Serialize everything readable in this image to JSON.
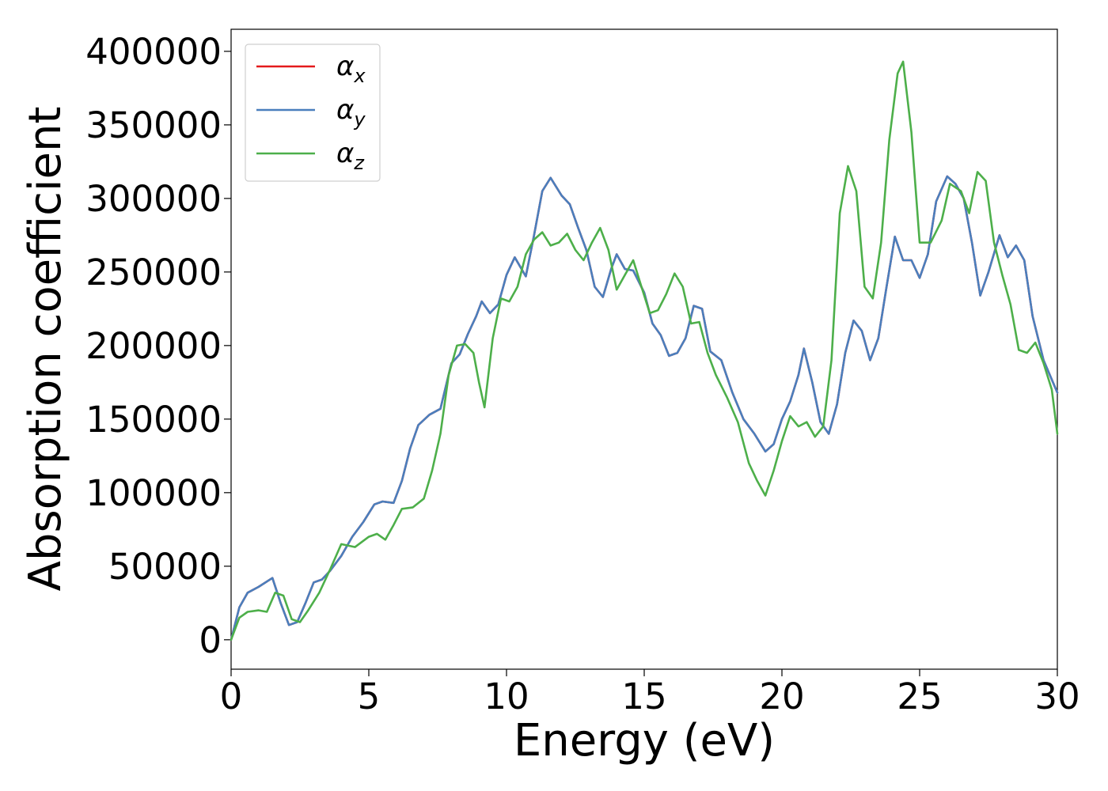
{
  "chart_data": {
    "type": "line",
    "title": "",
    "xlabel": "Energy (eV)",
    "ylabel": "Absorption coefficient",
    "xlim": [
      0,
      30
    ],
    "ylim": [
      -20000,
      415000
    ],
    "xticks": [
      "0",
      "5",
      "10",
      "15",
      "20",
      "25",
      "30"
    ],
    "yticks": [
      "0",
      "50000",
      "100000",
      "150000",
      "200000",
      "250000",
      "300000",
      "350000",
      "400000"
    ],
    "grid": false,
    "legend_position": "top-left",
    "series": [
      {
        "name": "αx",
        "legend_base": "α",
        "legend_sub": "x",
        "color": "#e41a1c",
        "points": [
          [
            0,
            0
          ],
          [
            0.3,
            22000
          ],
          [
            0.6,
            32000
          ],
          [
            1,
            36000
          ],
          [
            1.5,
            42000
          ],
          [
            1.8,
            25000
          ],
          [
            2.1,
            10000
          ],
          [
            2.4,
            12000
          ],
          [
            2.7,
            25000
          ],
          [
            3,
            39000
          ],
          [
            3.3,
            41000
          ],
          [
            3.6,
            47000
          ],
          [
            4,
            57000
          ],
          [
            4.4,
            70000
          ],
          [
            4.8,
            80000
          ],
          [
            5.2,
            92000
          ],
          [
            5.5,
            94000
          ],
          [
            5.9,
            93000
          ],
          [
            6.2,
            108000
          ],
          [
            6.5,
            130000
          ],
          [
            6.8,
            146000
          ],
          [
            7.2,
            153000
          ],
          [
            7.6,
            157000
          ],
          [
            8,
            188000
          ],
          [
            8.3,
            194000
          ],
          [
            8.6,
            208000
          ],
          [
            8.9,
            220000
          ],
          [
            9.1,
            230000
          ],
          [
            9.4,
            222000
          ],
          [
            9.7,
            228000
          ],
          [
            10,
            248000
          ],
          [
            10.3,
            260000
          ],
          [
            10.7,
            247000
          ],
          [
            11,
            275000
          ],
          [
            11.3,
            305000
          ],
          [
            11.6,
            314000
          ],
          [
            12,
            302000
          ],
          [
            12.3,
            296000
          ],
          [
            12.6,
            280000
          ],
          [
            12.9,
            265000
          ],
          [
            13.2,
            240000
          ],
          [
            13.5,
            233000
          ],
          [
            13.8,
            252000
          ],
          [
            14,
            262000
          ],
          [
            14.3,
            252000
          ],
          [
            14.6,
            251000
          ],
          [
            15,
            236000
          ],
          [
            15.3,
            215000
          ],
          [
            15.6,
            207000
          ],
          [
            15.9,
            193000
          ],
          [
            16.2,
            195000
          ],
          [
            16.5,
            205000
          ],
          [
            16.8,
            227000
          ],
          [
            17.1,
            225000
          ],
          [
            17.4,
            196000
          ],
          [
            17.8,
            190000
          ],
          [
            18.2,
            168000
          ],
          [
            18.6,
            150000
          ],
          [
            19,
            140000
          ],
          [
            19.4,
            128000
          ],
          [
            19.7,
            133000
          ],
          [
            20,
            150000
          ],
          [
            20.3,
            162000
          ],
          [
            20.6,
            180000
          ],
          [
            20.8,
            198000
          ],
          [
            21.1,
            175000
          ],
          [
            21.4,
            148000
          ],
          [
            21.7,
            140000
          ],
          [
            22,
            160000
          ],
          [
            22.3,
            195000
          ],
          [
            22.6,
            217000
          ],
          [
            22.9,
            210000
          ],
          [
            23.2,
            190000
          ],
          [
            23.5,
            205000
          ],
          [
            23.8,
            240000
          ],
          [
            24.1,
            274000
          ],
          [
            24.4,
            258000
          ],
          [
            24.7,
            258000
          ],
          [
            25,
            246000
          ],
          [
            25.3,
            262000
          ],
          [
            25.6,
            298000
          ],
          [
            26,
            315000
          ],
          [
            26.3,
            310000
          ],
          [
            26.6,
            300000
          ],
          [
            26.9,
            270000
          ],
          [
            27.2,
            234000
          ],
          [
            27.5,
            250000
          ],
          [
            27.9,
            275000
          ],
          [
            28.2,
            260000
          ],
          [
            28.5,
            268000
          ],
          [
            28.8,
            258000
          ],
          [
            29.1,
            220000
          ],
          [
            29.5,
            190000
          ],
          [
            30,
            168000
          ]
        ]
      },
      {
        "name": "αy",
        "legend_base": "α",
        "legend_sub": "y",
        "color": "#4a7fbd",
        "points": [
          [
            0,
            0
          ],
          [
            0.3,
            22000
          ],
          [
            0.6,
            32000
          ],
          [
            1,
            36000
          ],
          [
            1.5,
            42000
          ],
          [
            1.8,
            25000
          ],
          [
            2.1,
            10000
          ],
          [
            2.4,
            12000
          ],
          [
            2.7,
            25000
          ],
          [
            3,
            39000
          ],
          [
            3.3,
            41000
          ],
          [
            3.6,
            47000
          ],
          [
            4,
            57000
          ],
          [
            4.4,
            70000
          ],
          [
            4.8,
            80000
          ],
          [
            5.2,
            92000
          ],
          [
            5.5,
            94000
          ],
          [
            5.9,
            93000
          ],
          [
            6.2,
            108000
          ],
          [
            6.5,
            130000
          ],
          [
            6.8,
            146000
          ],
          [
            7.2,
            153000
          ],
          [
            7.6,
            157000
          ],
          [
            8,
            188000
          ],
          [
            8.3,
            194000
          ],
          [
            8.6,
            208000
          ],
          [
            8.9,
            220000
          ],
          [
            9.1,
            230000
          ],
          [
            9.4,
            222000
          ],
          [
            9.7,
            228000
          ],
          [
            10,
            248000
          ],
          [
            10.3,
            260000
          ],
          [
            10.7,
            247000
          ],
          [
            11,
            275000
          ],
          [
            11.3,
            305000
          ],
          [
            11.6,
            314000
          ],
          [
            12,
            302000
          ],
          [
            12.3,
            296000
          ],
          [
            12.6,
            280000
          ],
          [
            12.9,
            265000
          ],
          [
            13.2,
            240000
          ],
          [
            13.5,
            233000
          ],
          [
            13.8,
            252000
          ],
          [
            14,
            262000
          ],
          [
            14.3,
            252000
          ],
          [
            14.6,
            251000
          ],
          [
            15,
            236000
          ],
          [
            15.3,
            215000
          ],
          [
            15.6,
            207000
          ],
          [
            15.9,
            193000
          ],
          [
            16.2,
            195000
          ],
          [
            16.5,
            205000
          ],
          [
            16.8,
            227000
          ],
          [
            17.1,
            225000
          ],
          [
            17.4,
            196000
          ],
          [
            17.8,
            190000
          ],
          [
            18.2,
            168000
          ],
          [
            18.6,
            150000
          ],
          [
            19,
            140000
          ],
          [
            19.4,
            128000
          ],
          [
            19.7,
            133000
          ],
          [
            20,
            150000
          ],
          [
            20.3,
            162000
          ],
          [
            20.6,
            180000
          ],
          [
            20.8,
            198000
          ],
          [
            21.1,
            175000
          ],
          [
            21.4,
            148000
          ],
          [
            21.7,
            140000
          ],
          [
            22,
            160000
          ],
          [
            22.3,
            195000
          ],
          [
            22.6,
            217000
          ],
          [
            22.9,
            210000
          ],
          [
            23.2,
            190000
          ],
          [
            23.5,
            205000
          ],
          [
            23.8,
            240000
          ],
          [
            24.1,
            274000
          ],
          [
            24.4,
            258000
          ],
          [
            24.7,
            258000
          ],
          [
            25,
            246000
          ],
          [
            25.3,
            262000
          ],
          [
            25.6,
            298000
          ],
          [
            26,
            315000
          ],
          [
            26.3,
            310000
          ],
          [
            26.6,
            300000
          ],
          [
            26.9,
            270000
          ],
          [
            27.2,
            234000
          ],
          [
            27.5,
            250000
          ],
          [
            27.9,
            275000
          ],
          [
            28.2,
            260000
          ],
          [
            28.5,
            268000
          ],
          [
            28.8,
            258000
          ],
          [
            29.1,
            220000
          ],
          [
            29.5,
            190000
          ],
          [
            30,
            168000
          ]
        ]
      },
      {
        "name": "αz",
        "legend_base": "α",
        "legend_sub": "z",
        "color": "#4daf4a",
        "points": [
          [
            0,
            0
          ],
          [
            0.3,
            15000
          ],
          [
            0.6,
            19000
          ],
          [
            1,
            20000
          ],
          [
            1.3,
            19000
          ],
          [
            1.6,
            32000
          ],
          [
            1.9,
            30000
          ],
          [
            2.2,
            14000
          ],
          [
            2.5,
            12000
          ],
          [
            2.8,
            20000
          ],
          [
            3.2,
            32000
          ],
          [
            3.6,
            48000
          ],
          [
            4,
            65000
          ],
          [
            4.5,
            63000
          ],
          [
            5,
            70000
          ],
          [
            5.3,
            72000
          ],
          [
            5.6,
            68000
          ],
          [
            5.9,
            78000
          ],
          [
            6.2,
            89000
          ],
          [
            6.6,
            90000
          ],
          [
            7,
            96000
          ],
          [
            7.3,
            115000
          ],
          [
            7.6,
            140000
          ],
          [
            7.9,
            180000
          ],
          [
            8.2,
            200000
          ],
          [
            8.5,
            201000
          ],
          [
            8.8,
            195000
          ],
          [
            9,
            175000
          ],
          [
            9.2,
            158000
          ],
          [
            9.5,
            205000
          ],
          [
            9.8,
            232000
          ],
          [
            10.1,
            230000
          ],
          [
            10.4,
            240000
          ],
          [
            10.7,
            262000
          ],
          [
            11,
            272000
          ],
          [
            11.3,
            277000
          ],
          [
            11.6,
            268000
          ],
          [
            11.9,
            270000
          ],
          [
            12.2,
            276000
          ],
          [
            12.5,
            265000
          ],
          [
            12.8,
            258000
          ],
          [
            13.1,
            270000
          ],
          [
            13.4,
            280000
          ],
          [
            13.7,
            265000
          ],
          [
            14,
            238000
          ],
          [
            14.3,
            248000
          ],
          [
            14.6,
            258000
          ],
          [
            14.9,
            240000
          ],
          [
            15.2,
            222000
          ],
          [
            15.5,
            224000
          ],
          [
            15.8,
            235000
          ],
          [
            16.1,
            249000
          ],
          [
            16.4,
            240000
          ],
          [
            16.7,
            215000
          ],
          [
            17,
            216000
          ],
          [
            17.3,
            195000
          ],
          [
            17.6,
            180000
          ],
          [
            18,
            165000
          ],
          [
            18.4,
            148000
          ],
          [
            18.8,
            120000
          ],
          [
            19.1,
            108000
          ],
          [
            19.4,
            98000
          ],
          [
            19.7,
            115000
          ],
          [
            20,
            135000
          ],
          [
            20.3,
            152000
          ],
          [
            20.6,
            145000
          ],
          [
            20.9,
            148000
          ],
          [
            21.2,
            138000
          ],
          [
            21.5,
            145000
          ],
          [
            21.8,
            190000
          ],
          [
            22.1,
            290000
          ],
          [
            22.4,
            322000
          ],
          [
            22.7,
            305000
          ],
          [
            23,
            240000
          ],
          [
            23.3,
            232000
          ],
          [
            23.6,
            270000
          ],
          [
            23.9,
            340000
          ],
          [
            24.2,
            385000
          ],
          [
            24.4,
            393000
          ],
          [
            24.7,
            345000
          ],
          [
            25,
            270000
          ],
          [
            25.4,
            270000
          ],
          [
            25.8,
            285000
          ],
          [
            26.1,
            310000
          ],
          [
            26.5,
            305000
          ],
          [
            26.8,
            290000
          ],
          [
            27.1,
            318000
          ],
          [
            27.4,
            312000
          ],
          [
            27.7,
            270000
          ],
          [
            28,
            248000
          ],
          [
            28.3,
            228000
          ],
          [
            28.6,
            197000
          ],
          [
            28.9,
            195000
          ],
          [
            29.2,
            202000
          ],
          [
            29.5,
            188000
          ],
          [
            29.8,
            170000
          ],
          [
            30,
            140000
          ]
        ]
      }
    ]
  }
}
